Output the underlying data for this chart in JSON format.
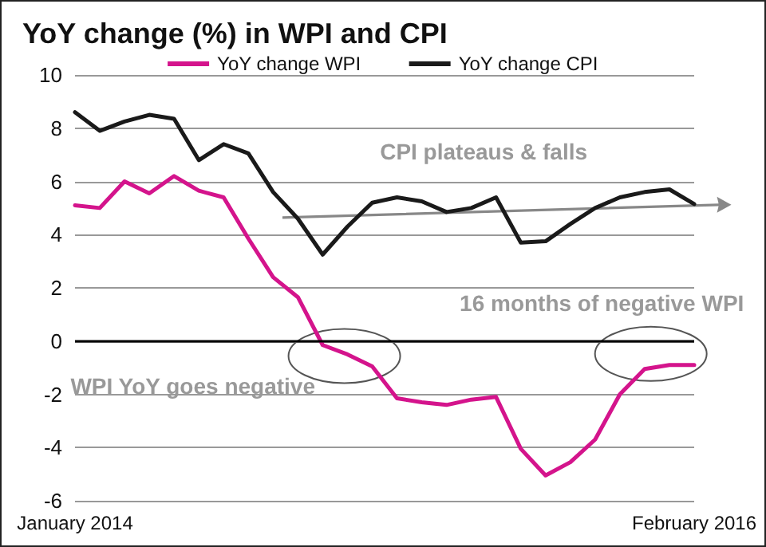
{
  "chart_data": {
    "type": "line",
    "title": "YoY change (%) in WPI and CPI",
    "categories": [
      "January 2014",
      null,
      null,
      null,
      null,
      null,
      null,
      null,
      null,
      null,
      null,
      null,
      null,
      null,
      null,
      null,
      null,
      null,
      null,
      null,
      null,
      null,
      null,
      null,
      null,
      "February 2016"
    ],
    "series": [
      {
        "name": "YoY change WPI",
        "color": "#d4148c",
        "values": [
          5.1,
          5.0,
          6.0,
          5.55,
          6.2,
          5.65,
          5.4,
          3.85,
          2.4,
          1.65,
          -0.15,
          -0.5,
          -0.95,
          -2.15,
          -2.3,
          -2.4,
          -2.2,
          -2.1,
          -4.05,
          -5.05,
          -4.55,
          -3.7,
          -2.0,
          -1.05,
          -0.9,
          -0.9
        ]
      },
      {
        "name": "YoY change CPI",
        "color": "#1a1a1a",
        "values": [
          8.6,
          7.9,
          8.25,
          8.5,
          8.35,
          6.8,
          7.4,
          7.05,
          5.6,
          4.6,
          3.25,
          4.3,
          5.2,
          5.4,
          5.25,
          4.85,
          5.0,
          5.4,
          3.7,
          3.75,
          4.4,
          5.0,
          5.4,
          5.6,
          5.7,
          5.15
        ]
      }
    ],
    "ylim": [
      -6,
      10
    ],
    "yticks": [
      -6,
      -4,
      -2,
      0,
      2,
      4,
      6,
      8,
      10
    ],
    "ref_lines": [
      {
        "axis": "y",
        "value": 0,
        "color": "#000000"
      }
    ],
    "annotations": [
      "CPI plateaus & falls",
      "16 months of negative WPI",
      "WPI YoY goes negative"
    ],
    "grid": "y",
    "legend": "top",
    "marker": "none",
    "line_style": "solid"
  }
}
